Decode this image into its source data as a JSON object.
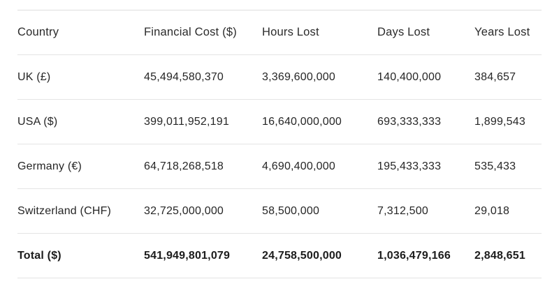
{
  "table": {
    "columns": [
      "Country",
      "Financial Cost ($)",
      "Hours Lost",
      "Days Lost",
      "Years Lost"
    ],
    "rows": [
      {
        "country": "UK (£)",
        "financial_cost": "45,494,580,370",
        "hours_lost": "3,369,600,000",
        "days_lost": "140,400,000",
        "years_lost": "384,657"
      },
      {
        "country": "USA ($)",
        "financial_cost": "399,011,952,191",
        "hours_lost": "16,640,000,000",
        "days_lost": "693,333,333",
        "years_lost": "1,899,543"
      },
      {
        "country": "Germany (€)",
        "financial_cost": "64,718,268,518",
        "hours_lost": "4,690,400,000",
        "days_lost": "195,433,333",
        "years_lost": "535,433"
      },
      {
        "country": "Switzerland (CHF)",
        "financial_cost": "32,725,000,000",
        "hours_lost": "58,500,000",
        "days_lost": "7,312,500",
        "years_lost": "29,018"
      }
    ],
    "total": {
      "country": "Total ($)",
      "financial_cost": "541,949,801,079",
      "hours_lost": "24,758,500,000",
      "days_lost": "1,036,479,166",
      "years_lost": "2,848,651"
    }
  },
  "colors": {
    "background": "#ffffff",
    "text": "#262626",
    "divider": "#e4e4e4"
  },
  "chart_data": {
    "type": "table",
    "title": "",
    "columns": [
      "Country",
      "Financial Cost ($)",
      "Hours Lost",
      "Days Lost",
      "Years Lost"
    ],
    "rows": [
      [
        "UK (£)",
        45494580370,
        3369600000,
        140400000,
        384657
      ],
      [
        "USA ($)",
        399011952191,
        16640000000,
        693333333,
        1899543
      ],
      [
        "Germany (€)",
        64718268518,
        4690400000,
        195433333,
        535433
      ],
      [
        "Switzerland (CHF)",
        32725000000,
        58500000,
        7312500,
        29018
      ],
      [
        "Total ($)",
        541949801079,
        24758500000,
        1036479166,
        2848651
      ]
    ],
    "layout_hints": {
      "grid": "horizontal-dividers-only",
      "alignment": "left",
      "total_row_bold": true
    }
  }
}
